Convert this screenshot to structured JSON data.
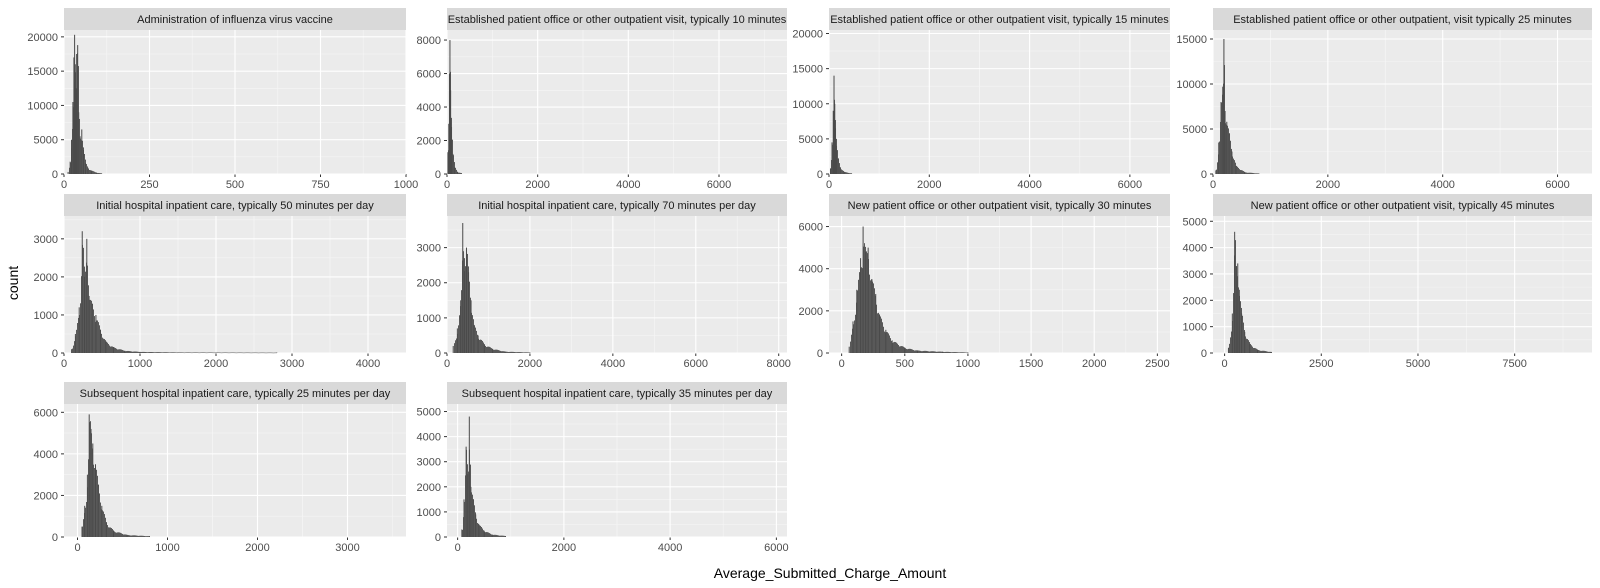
{
  "chart_data": {
    "type": "bar",
    "subtype": "faceted-histogram",
    "xlabel": "Average_Submitted_Charge_Amount",
    "ylabel": "count",
    "grid": true,
    "facets": [
      {
        "title": "Administration of influenza virus vaccine",
        "xlim": [
          0,
          1000
        ],
        "ylim": [
          0,
          21000
        ],
        "xticks": [
          0,
          250,
          500,
          750,
          1000
        ],
        "yticks": [
          0,
          5000,
          10000,
          15000,
          20000
        ],
        "peaks": [
          [
            12,
            300
          ],
          [
            18,
            1800
          ],
          [
            22,
            5000
          ],
          [
            26,
            10500
          ],
          [
            29,
            17000
          ],
          [
            31,
            20300
          ],
          [
            33,
            16000
          ],
          [
            35,
            12500
          ],
          [
            37,
            17500
          ],
          [
            40,
            18800
          ],
          [
            43,
            9000
          ],
          [
            47,
            5500
          ],
          [
            52,
            6500
          ],
          [
            57,
            3500
          ],
          [
            63,
            1600
          ],
          [
            70,
            900
          ],
          [
            80,
            500
          ],
          [
            95,
            200
          ],
          [
            110,
            80
          ]
        ]
      },
      {
        "title": "Established patient office or other outpatient visit, typically 10 minutes",
        "xlim": [
          0,
          7500
        ],
        "ylim": [
          0,
          8600
        ],
        "xticks": [
          0,
          2000,
          4000,
          6000
        ],
        "yticks": [
          0,
          2000,
          4000,
          6000,
          8000
        ],
        "peaks": [
          [
            20,
            1300
          ],
          [
            40,
            3000
          ],
          [
            55,
            6000
          ],
          [
            65,
            8000
          ],
          [
            80,
            5000
          ],
          [
            100,
            2800
          ],
          [
            130,
            1200
          ],
          [
            170,
            400
          ],
          [
            230,
            120
          ],
          [
            320,
            40
          ]
        ]
      },
      {
        "title": "Established patient office or other outpatient visit, typically 15 minutes",
        "xlim": [
          0,
          6800
        ],
        "ylim": [
          0,
          20500
        ],
        "xticks": [
          0,
          2000,
          4000,
          6000
        ],
        "yticks": [
          0,
          5000,
          10000,
          15000,
          20000
        ],
        "peaks": [
          [
            30,
            800
          ],
          [
            60,
            4500
          ],
          [
            85,
            9000
          ],
          [
            100,
            14000
          ],
          [
            115,
            10000
          ],
          [
            130,
            6500
          ],
          [
            150,
            4000
          ],
          [
            180,
            2200
          ],
          [
            220,
            1000
          ],
          [
            300,
            300
          ],
          [
            450,
            80
          ]
        ]
      },
      {
        "title": "Established patient office or other outpatient, visit typically 25 minutes",
        "xlim": [
          0,
          6600
        ],
        "ylim": [
          0,
          16000
        ],
        "xticks": [
          0,
          2000,
          4000,
          6000
        ],
        "yticks": [
          0,
          5000,
          10000,
          15000
        ],
        "peaks": [
          [
            50,
            400
          ],
          [
            100,
            3500
          ],
          [
            140,
            8000
          ],
          [
            170,
            9700
          ],
          [
            190,
            15000
          ],
          [
            210,
            7000
          ],
          [
            240,
            5800
          ],
          [
            280,
            4500
          ],
          [
            330,
            2500
          ],
          [
            400,
            900
          ],
          [
            550,
            200
          ],
          [
            800,
            50
          ]
        ]
      },
      {
        "title": "Initial hospital inpatient care, typically 50 minutes per day",
        "xlim": [
          0,
          4500
        ],
        "ylim": [
          0,
          3600
        ],
        "xticks": [
          0,
          1000,
          2000,
          3000,
          4000
        ],
        "yticks": [
          0,
          1000,
          2000,
          3000
        ],
        "peaks": [
          [
            100,
            100
          ],
          [
            150,
            500
          ],
          [
            200,
            1200
          ],
          [
            240,
            3200
          ],
          [
            270,
            2000
          ],
          [
            300,
            3000
          ],
          [
            330,
            1500
          ],
          [
            370,
            1300
          ],
          [
            420,
            1000
          ],
          [
            480,
            600
          ],
          [
            550,
            300
          ],
          [
            650,
            150
          ],
          [
            800,
            60
          ],
          [
            1000,
            30
          ],
          [
            1500,
            15
          ],
          [
            2800,
            10
          ]
        ]
      },
      {
        "title": "Initial hospital inpatient care, typically 70 minutes per day",
        "xlim": [
          0,
          8200
        ],
        "ylim": [
          0,
          3900
        ],
        "xticks": [
          0,
          2000,
          4000,
          6000,
          8000
        ],
        "yticks": [
          0,
          1000,
          2000,
          3000
        ],
        "peaks": [
          [
            150,
            200
          ],
          [
            250,
            700
          ],
          [
            330,
            1500
          ],
          [
            380,
            3700
          ],
          [
            420,
            2700
          ],
          [
            470,
            3000
          ],
          [
            520,
            2300
          ],
          [
            580,
            1500
          ],
          [
            650,
            800
          ],
          [
            750,
            500
          ],
          [
            900,
            250
          ],
          [
            1100,
            120
          ],
          [
            1400,
            40
          ],
          [
            2000,
            15
          ]
        ]
      },
      {
        "title": "New patient office or other outpatient visit, typically 30 minutes",
        "xlim": [
          -100,
          2600
        ],
        "ylim": [
          0,
          6500
        ],
        "xticks": [
          0,
          500,
          1000,
          1500,
          2000,
          2500
        ],
        "yticks": [
          0,
          2000,
          4000,
          6000
        ],
        "peaks": [
          [
            60,
            300
          ],
          [
            90,
            1500
          ],
          [
            120,
            3000
          ],
          [
            150,
            4500
          ],
          [
            170,
            6000
          ],
          [
            190,
            4800
          ],
          [
            210,
            5000
          ],
          [
            240,
            3500
          ],
          [
            270,
            2800
          ],
          [
            300,
            1800
          ],
          [
            350,
            1100
          ],
          [
            400,
            600
          ],
          [
            500,
            250
          ],
          [
            600,
            120
          ],
          [
            800,
            60
          ],
          [
            1000,
            25
          ]
        ]
      },
      {
        "title": "New patient office or other outpatient visit, typically 45 minutes",
        "xlim": [
          -300,
          9500
        ],
        "ylim": [
          0,
          5200
        ],
        "xticks": [
          0,
          2500,
          5000,
          7500
        ],
        "yticks": [
          0,
          1000,
          2000,
          3000,
          4000,
          5000
        ],
        "peaks": [
          [
            100,
            200
          ],
          [
            200,
            1500
          ],
          [
            260,
            4600
          ],
          [
            300,
            3300
          ],
          [
            340,
            3400
          ],
          [
            380,
            2400
          ],
          [
            440,
            1500
          ],
          [
            520,
            800
          ],
          [
            650,
            350
          ],
          [
            850,
            120
          ],
          [
            1200,
            40
          ]
        ]
      },
      {
        "title": "Subsequent hospital inpatient care, typically 25 minutes per day",
        "xlim": [
          -150,
          3650
        ],
        "ylim": [
          0,
          6400
        ],
        "xticks": [
          0,
          1000,
          2000,
          3000
        ],
        "yticks": [
          0,
          2000,
          4000,
          6000
        ],
        "peaks": [
          [
            50,
            500
          ],
          [
            80,
            1500
          ],
          [
            110,
            3000
          ],
          [
            130,
            5900
          ],
          [
            150,
            5200
          ],
          [
            170,
            4500
          ],
          [
            200,
            3500
          ],
          [
            230,
            2500
          ],
          [
            270,
            1500
          ],
          [
            320,
            700
          ],
          [
            400,
            300
          ],
          [
            550,
            100
          ],
          [
            800,
            40
          ]
        ]
      },
      {
        "title": "Subsequent hospital inpatient care, typically 35 minutes per day",
        "xlim": [
          -200,
          6200
        ],
        "ylim": [
          0,
          5300
        ],
        "xticks": [
          0,
          2000,
          4000,
          6000
        ],
        "yticks": [
          0,
          1000,
          2000,
          3000,
          4000,
          5000
        ],
        "peaks": [
          [
            80,
            300
          ],
          [
            120,
            1500
          ],
          [
            160,
            3600
          ],
          [
            190,
            2500
          ],
          [
            220,
            4800
          ],
          [
            250,
            2000
          ],
          [
            290,
            1500
          ],
          [
            340,
            900
          ],
          [
            400,
            500
          ],
          [
            500,
            250
          ],
          [
            650,
            100
          ],
          [
            900,
            40
          ]
        ]
      }
    ]
  }
}
